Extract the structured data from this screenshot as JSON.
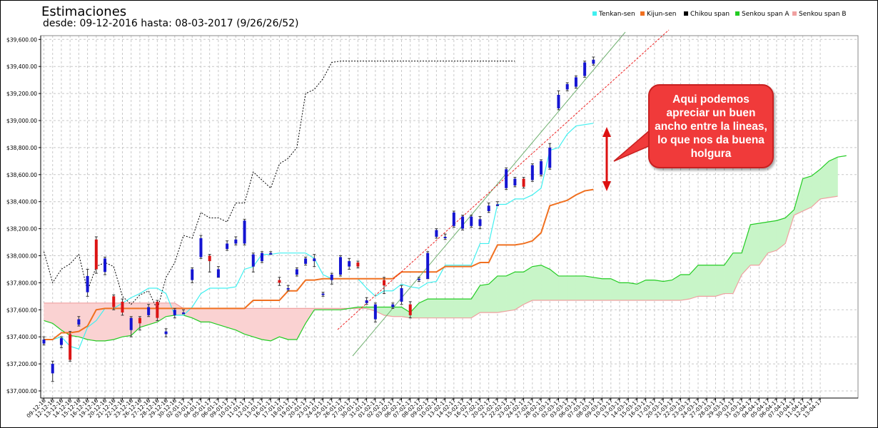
{
  "header": {
    "title": "Estimaciones",
    "subtitle": "desde: 09-12-2016 hasta: 08-03-2017 (9/26/26/52)"
  },
  "annotation": {
    "text": "Aqui podemos apreciar un buen ancho entre la lineas, lo que nos da buena holgura"
  },
  "colors": {
    "tenkan": "#40f0f0",
    "kijun": "#f07020",
    "chikou": "#000000",
    "senkou_a": "#22cc22",
    "senkou_b": "#f0a0a0",
    "cloud_bull": "#c8f5c8",
    "cloud_bear": "#fad2d2",
    "candle_up": "#1414d2",
    "candle_down": "#dc1414",
    "callout": "#f03a3a"
  },
  "chart_data": {
    "type": "candlestick",
    "ylim": [
      37000,
      39600
    ],
    "yticks": [
      "$37,000.00",
      "$37,200.00",
      "$37,400.00",
      "$37,600.00",
      "$37,800.00",
      "$38,000.00",
      "$38,200.00",
      "$38,400.00",
      "$38,600.00",
      "$38,800.00",
      "$39,000.00",
      "$39,200.00",
      "$39,400.00",
      "$39,600.00"
    ],
    "legend": [
      {
        "name": "Tenkan-sen",
        "color": "#40f0f0"
      },
      {
        "name": "Kijun-sen",
        "color": "#f07020"
      },
      {
        "name": "Chikou span",
        "color": "#000000"
      },
      {
        "name": "Senkou span A",
        "color": "#22cc22"
      },
      {
        "name": "Senkou span B",
        "color": "#f0a0a0"
      }
    ],
    "legend_position": "top-right",
    "grid": true,
    "x": [
      "09-12-16",
      "12-12-16",
      "13-12-16",
      "14-12-16",
      "15-12-16",
      "16-12-16",
      "19-12-16",
      "20-12-16",
      "21-12-16",
      "22-12-16",
      "23-12-16",
      "26-12-16",
      "27-12-16",
      "28-12-16",
      "29-12-16",
      "30-12-16",
      "02-01-17",
      "03-01-17",
      "04-01-17",
      "05-01-17",
      "06-01-17",
      "09-01-17",
      "10-01-17",
      "11-01-17",
      "12-01-17",
      "13-01-17",
      "16-01-17",
      "17-01-17",
      "18-01-17",
      "19-01-17",
      "20-01-17",
      "23-01-17",
      "24-01-17",
      "25-01-17",
      "26-01-17",
      "27-01-17",
      "30-01-17",
      "31-01-17",
      "01-02-17",
      "02-02-17",
      "03-02-17",
      "06-02-17",
      "07-02-17",
      "08-02-17",
      "09-02-17",
      "10-02-17",
      "13-02-17",
      "14-02-17",
      "15-02-17",
      "16-02-17",
      "17-02-17",
      "20-02-17",
      "21-02-17",
      "22-02-17",
      "23-02-17",
      "24-02-17",
      "27-02-17",
      "28-02-17",
      "01-03-17",
      "02-03-17",
      "03-03-17",
      "06-03-17",
      "07-03-17",
      "08-03-17",
      "09-03-17",
      "10-03-17",
      "13-03-17",
      "14-03-17",
      "15-03-17",
      "16-03-17",
      "17-03-17",
      "20-03-17",
      "21-03-17",
      "22-03-17",
      "23-03-17",
      "24-03-17",
      "27-03-17",
      "28-03-17",
      "29-03-17",
      "30-03-17",
      "31-03-17",
      "03-04-17",
      "04-04-17",
      "05-04-17",
      "06-04-17",
      "07-04-17",
      "10-04-17",
      "11-04-17",
      "12-04-17",
      "13-04-17"
    ],
    "candles": [
      {
        "o": 37350,
        "c": 37380,
        "h": 37400,
        "l": 37340
      },
      {
        "o": 37130,
        "c": 37200,
        "h": 37220,
        "l": 37070
      },
      {
        "o": 37340,
        "c": 37390,
        "h": 37400,
        "l": 37320
      },
      {
        "o": 37420,
        "c": 37230,
        "h": 37440,
        "l": 37220
      },
      {
        "o": 37490,
        "c": 37530,
        "h": 37550,
        "l": 37480
      },
      {
        "o": 37730,
        "c": 37850,
        "h": 37900,
        "l": 37700
      },
      {
        "o": 38120,
        "c": 37900,
        "h": 38140,
        "l": 37870
      },
      {
        "o": 37880,
        "c": 37980,
        "h": 37990,
        "l": 37860
      },
      {
        "o": 37700,
        "c": 37620,
        "h": 37710,
        "l": 37600
      },
      {
        "o": 37660,
        "c": 37580,
        "h": 37680,
        "l": 37560
      },
      {
        "o": 37450,
        "c": 37540,
        "h": 37550,
        "l": 37400
      },
      {
        "o": 37540,
        "c": 37500,
        "h": 37550,
        "l": 37450
      },
      {
        "o": 37560,
        "c": 37620,
        "h": 37640,
        "l": 37550
      },
      {
        "o": 37660,
        "c": 37540,
        "h": 37670,
        "l": 37520
      },
      {
        "o": 37420,
        "c": 37440,
        "h": 37460,
        "l": 37400
      },
      {
        "o": 37560,
        "c": 37600,
        "h": 37610,
        "l": 37540
      },
      {
        "o": 37580,
        "c": 37580,
        "h": 37600,
        "l": 37570
      },
      {
        "o": 37820,
        "c": 37900,
        "h": 37910,
        "l": 37800
      },
      {
        "o": 37990,
        "c": 38130,
        "h": 38150,
        "l": 37980
      },
      {
        "o": 38000,
        "c": 37960,
        "h": 38010,
        "l": 37880
      },
      {
        "o": 37840,
        "c": 37900,
        "h": 37920,
        "l": 37840
      },
      {
        "o": 38050,
        "c": 38090,
        "h": 38110,
        "l": 38040
      },
      {
        "o": 38090,
        "c": 38120,
        "h": 38140,
        "l": 38080
      },
      {
        "o": 38090,
        "c": 38260,
        "h": 38270,
        "l": 38080
      },
      {
        "o": 37920,
        "c": 38010,
        "h": 38020,
        "l": 37880
      },
      {
        "o": 37960,
        "c": 38020,
        "h": 38030,
        "l": 37950
      },
      {
        "o": 38020,
        "c": 38020,
        "h": 38030,
        "l": 38010
      },
      {
        "o": 37820,
        "c": 37800,
        "h": 37840,
        "l": 37780
      },
      {
        "o": 37760,
        "c": 37760,
        "h": 37780,
        "l": 37740
      },
      {
        "o": 37860,
        "c": 37900,
        "h": 37910,
        "l": 37850
      },
      {
        "o": 37940,
        "c": 37980,
        "h": 37990,
        "l": 37930
      },
      {
        "o": 37960,
        "c": 37980,
        "h": 38010,
        "l": 37920
      },
      {
        "o": 37710,
        "c": 37720,
        "h": 37730,
        "l": 37700
      },
      {
        "o": 37820,
        "c": 37860,
        "h": 37870,
        "l": 37790
      },
      {
        "o": 37860,
        "c": 37990,
        "h": 38000,
        "l": 37850
      },
      {
        "o": 37920,
        "c": 37960,
        "h": 37980,
        "l": 37900
      },
      {
        "o": 37950,
        "c": 37920,
        "h": 37960,
        "l": 37910
      },
      {
        "o": 37650,
        "c": 37670,
        "h": 37690,
        "l": 37640
      },
      {
        "o": 37530,
        "c": 37640,
        "h": 37650,
        "l": 37510
      },
      {
        "o": 37820,
        "c": 37780,
        "h": 37840,
        "l": 37720
      },
      {
        "o": 37620,
        "c": 37640,
        "h": 37650,
        "l": 37610
      },
      {
        "o": 37660,
        "c": 37760,
        "h": 37780,
        "l": 37640
      },
      {
        "o": 37640,
        "c": 37560,
        "h": 37660,
        "l": 37540
      },
      {
        "o": 37820,
        "c": 37830,
        "h": 37840,
        "l": 37810
      },
      {
        "o": 37830,
        "c": 38020,
        "h": 38030,
        "l": 37830
      },
      {
        "o": 38140,
        "c": 38190,
        "h": 38200,
        "l": 38130
      },
      {
        "o": 38140,
        "c": 38140,
        "h": 38160,
        "l": 38120
      },
      {
        "o": 38220,
        "c": 38320,
        "h": 38330,
        "l": 38210
      },
      {
        "o": 38200,
        "c": 38290,
        "h": 38300,
        "l": 38190
      },
      {
        "o": 38220,
        "c": 38290,
        "h": 38300,
        "l": 38210
      },
      {
        "o": 38220,
        "c": 38270,
        "h": 38290,
        "l": 38200
      },
      {
        "o": 38330,
        "c": 38370,
        "h": 38390,
        "l": 38320
      },
      {
        "o": 38380,
        "c": 38380,
        "h": 38400,
        "l": 38370
      },
      {
        "o": 38500,
        "c": 38640,
        "h": 38650,
        "l": 38490
      },
      {
        "o": 38520,
        "c": 38570,
        "h": 38580,
        "l": 38510
      },
      {
        "o": 38570,
        "c": 38510,
        "h": 38580,
        "l": 38500
      },
      {
        "o": 38560,
        "c": 38670,
        "h": 38680,
        "l": 38550
      },
      {
        "o": 38600,
        "c": 38700,
        "h": 38710,
        "l": 38590
      },
      {
        "o": 38650,
        "c": 38800,
        "h": 38830,
        "l": 38640
      },
      {
        "o": 39090,
        "c": 39190,
        "h": 39220,
        "l": 39080
      },
      {
        "o": 39230,
        "c": 39270,
        "h": 39280,
        "l": 39220
      },
      {
        "o": 39250,
        "c": 39320,
        "h": 39330,
        "l": 39240
      },
      {
        "o": 39330,
        "c": 39430,
        "h": 39440,
        "l": 39320
      },
      {
        "o": 39420,
        "c": 39450,
        "h": 39470,
        "l": 39410
      }
    ],
    "tenkan": [
      37380,
      37380,
      37400,
      37330,
      37310,
      37470,
      37520,
      37610,
      37610,
      37650,
      37690,
      37720,
      37760,
      37760,
      37720,
      37560,
      37560,
      37620,
      37720,
      37760,
      37760,
      37760,
      37770,
      37900,
      37920,
      38010,
      38010,
      38020,
      38020,
      38020,
      38020,
      37980,
      37860,
      37830,
      37830,
      37830,
      37830,
      37760,
      37700,
      37740,
      37740,
      37790,
      37770,
      37760,
      37800,
      37810,
      37930,
      37930,
      37930,
      37930,
      38090,
      38090,
      38380,
      38380,
      38420,
      38420,
      38450,
      38500,
      38780,
      38800,
      38900,
      38960,
      38970,
      38980
    ],
    "kijun": [
      37380,
      37380,
      37430,
      37430,
      37440,
      37480,
      37600,
      37610,
      37610,
      37610,
      37610,
      37610,
      37610,
      37610,
      37610,
      37610,
      37610,
      37610,
      37610,
      37610,
      37610,
      37610,
      37610,
      37610,
      37670,
      37670,
      37670,
      37670,
      37740,
      37740,
      37820,
      37820,
      37830,
      37830,
      37830,
      37830,
      37830,
      37830,
      37830,
      37830,
      37830,
      37880,
      37880,
      37880,
      37880,
      37880,
      37920,
      37920,
      37920,
      37920,
      37950,
      37950,
      38080,
      38080,
      38080,
      38090,
      38110,
      38170,
      38370,
      38390,
      38410,
      38450,
      38480,
      38490
    ],
    "chikou": [
      38030,
      37800,
      37900,
      37940,
      38010,
      37740,
      37920,
      37950,
      37920,
      37700,
      37640,
      37710,
      37740,
      37600,
      37840,
      37950,
      38150,
      38130,
      38320,
      38280,
      38280,
      38250,
      38390,
      38390,
      38620,
      38560,
      38500,
      38680,
      38720,
      38800,
      39200,
      39230,
      39310,
      39430,
      39440,
      39440,
      39440,
      39440,
      39440,
      39440,
      39440,
      39440,
      39440,
      39440,
      39440,
      39440,
      39440,
      39440,
      39440,
      39440,
      39440,
      39440,
      39440,
      39440,
      39440
    ],
    "senkou_a": [
      37520,
      37500,
      37450,
      37410,
      37400,
      37380,
      37370,
      37370,
      37380,
      37400,
      37410,
      37470,
      37490,
      37510,
      37550,
      37560,
      37560,
      37540,
      37510,
      37510,
      37490,
      37470,
      37450,
      37420,
      37400,
      37380,
      37370,
      37400,
      37380,
      37380,
      37500,
      37600,
      37600,
      37600,
      37600,
      37610,
      37620,
      37620,
      37620,
      37620,
      37620,
      37620,
      37580,
      37650,
      37680,
      37680,
      37680,
      37680,
      37680,
      37680,
      37780,
      37790,
      37850,
      37850,
      37880,
      37880,
      37920,
      37930,
      37900,
      37850,
      37850,
      37850,
      37850,
      37840,
      37830,
      37830,
      37800,
      37800,
      37790,
      37820,
      37820,
      37810,
      37820,
      37860,
      37860,
      37930,
      37930,
      37930,
      37930,
      38020,
      38020,
      38230,
      38240,
      38250,
      38260,
      38280,
      38340,
      38570,
      38590,
      38640,
      38700,
      38730,
      38740
    ],
    "senkou_b": [
      37650,
      37650,
      37650,
      37650,
      37650,
      37650,
      37650,
      37650,
      37650,
      37650,
      37650,
      37650,
      37650,
      37650,
      37650,
      37650,
      37610,
      37610,
      37610,
      37610,
      37610,
      37610,
      37610,
      37610,
      37610,
      37610,
      37610,
      37610,
      37610,
      37610,
      37610,
      37610,
      37610,
      37610,
      37610,
      37610,
      37610,
      37610,
      37590,
      37560,
      37550,
      37550,
      37540,
      37540,
      37540,
      37540,
      37540,
      37540,
      37540,
      37540,
      37580,
      37580,
      37580,
      37590,
      37600,
      37640,
      37670,
      37670,
      37670,
      37670,
      37670,
      37670,
      37670,
      37670,
      37670,
      37670,
      37670,
      37670,
      37670,
      37670,
      37670,
      37670,
      37670,
      37670,
      37680,
      37700,
      37700,
      37700,
      37720,
      37720,
      37860,
      37930,
      37930,
      38020,
      38040,
      38090,
      38300,
      38330,
      38360,
      38420,
      38430,
      38440
    ]
  }
}
